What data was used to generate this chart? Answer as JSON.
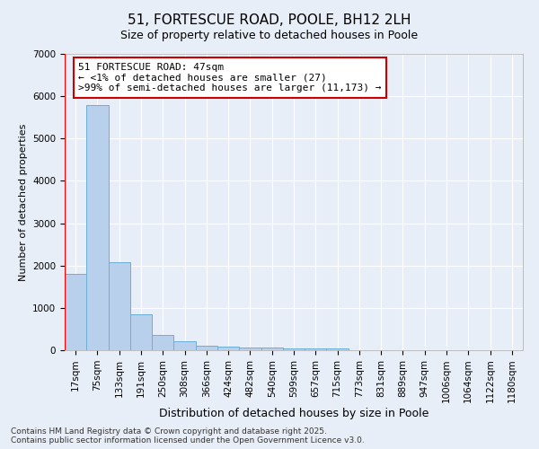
{
  "title": "51, FORTESCUE ROAD, POOLE, BH12 2LH",
  "subtitle": "Size of property relative to detached houses in Poole",
  "xlabel": "Distribution of detached houses by size in Poole",
  "ylabel": "Number of detached properties",
  "bar_labels": [
    "17sqm",
    "75sqm",
    "133sqm",
    "191sqm",
    "250sqm",
    "308sqm",
    "366sqm",
    "424sqm",
    "482sqm",
    "540sqm",
    "599sqm",
    "657sqm",
    "715sqm",
    "773sqm",
    "831sqm",
    "889sqm",
    "947sqm",
    "1006sqm",
    "1064sqm",
    "1122sqm",
    "1180sqm"
  ],
  "bar_values": [
    1800,
    5800,
    2080,
    840,
    360,
    215,
    115,
    95,
    70,
    55,
    48,
    48,
    48,
    0,
    0,
    0,
    0,
    0,
    0,
    0,
    0
  ],
  "bar_color": "#b8d0eb",
  "bar_edgecolor": "#6baed6",
  "bar_linewidth": 0.7,
  "annotation_text": "51 FORTESCUE ROAD: 47sqm\n← <1% of detached houses are smaller (27)\n>99% of semi-detached houses are larger (11,173) →",
  "annotation_box_facecolor": "#ffffff",
  "annotation_box_edgecolor": "#cc0000",
  "ylim": [
    0,
    7000
  ],
  "yticks": [
    0,
    1000,
    2000,
    3000,
    4000,
    5000,
    6000,
    7000
  ],
  "bg_color": "#e8eef8",
  "grid_color": "#ffffff",
  "title_fontsize": 11,
  "subtitle_fontsize": 9,
  "ylabel_fontsize": 8,
  "xlabel_fontsize": 9,
  "tick_fontsize": 7.5,
  "footnote": "Contains HM Land Registry data © Crown copyright and database right 2025.\nContains public sector information licensed under the Open Government Licence v3.0.",
  "footnote_fontsize": 6.5
}
